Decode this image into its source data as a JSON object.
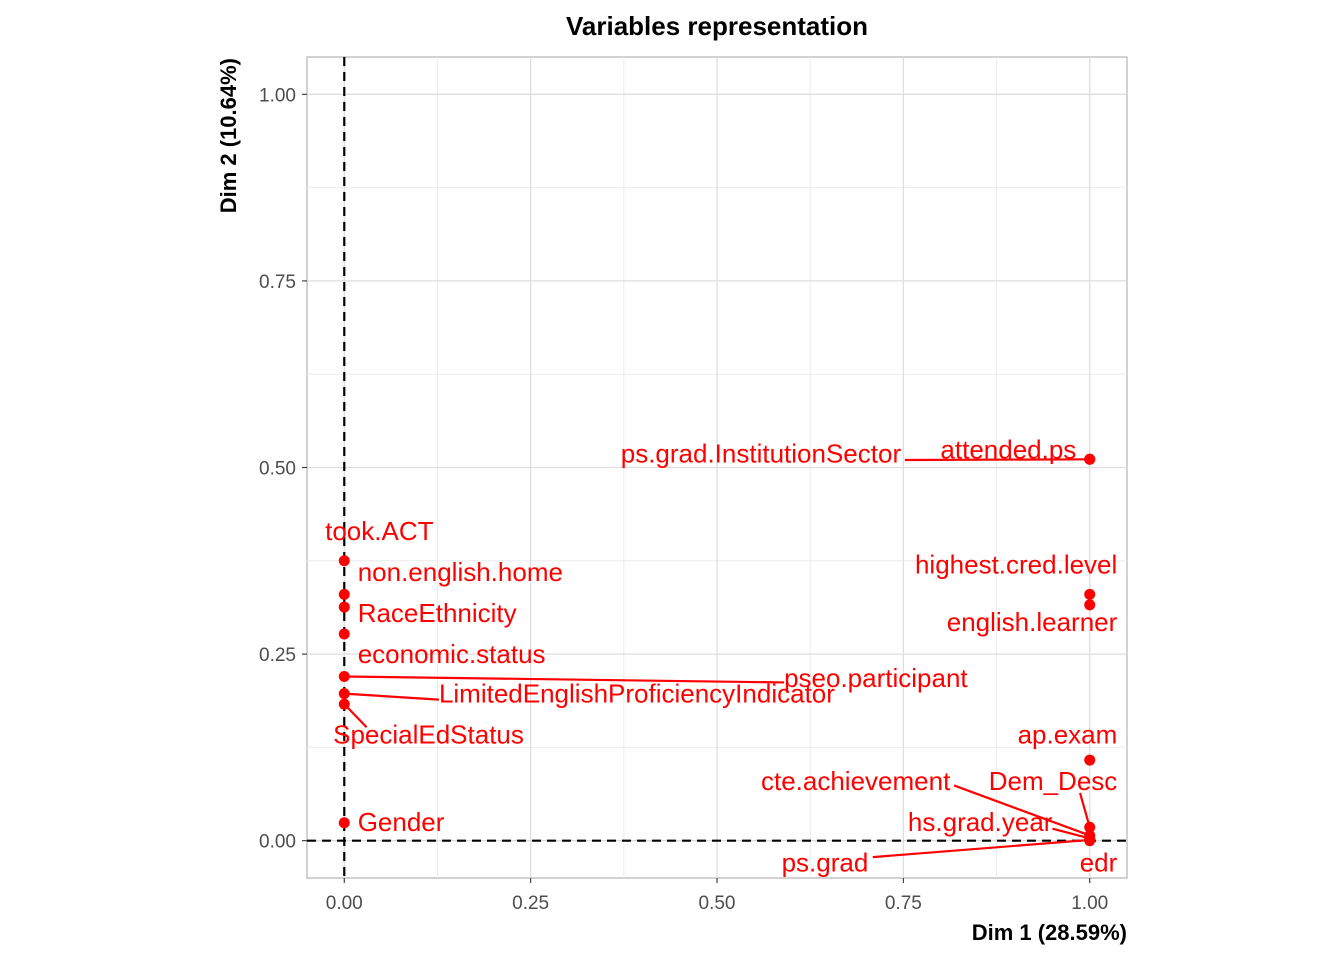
{
  "chart_data": {
    "type": "scatter",
    "title": "Variables representation",
    "xlabel": "Dim 1 (28.59%)",
    "ylabel": "Dim 2 (10.64%)",
    "xlim": [
      -0.05,
      1.05
    ],
    "ylim": [
      -0.05,
      1.05
    ],
    "x_ticks": [
      0.0,
      0.25,
      0.5,
      0.75,
      1.0
    ],
    "x_tick_labels": [
      "0.00",
      "0.25",
      "0.50",
      "0.75",
      "1.00"
    ],
    "y_ticks": [
      0.0,
      0.25,
      0.5,
      0.75,
      1.0
    ],
    "y_tick_labels": [
      "0.00",
      "0.25",
      "0.50",
      "0.75",
      "1.00"
    ],
    "grid": true,
    "reference_lines": {
      "x": 0,
      "y": 0,
      "style": "dashed"
    },
    "point_color": "#ff0000",
    "points": [
      {
        "label": "took.ACT",
        "x": 0.0,
        "y": 0.375,
        "lx": 0.047,
        "ly": 0.403,
        "anchor": "middle"
      },
      {
        "label": "non.english.home",
        "x": 0.0,
        "y": 0.33,
        "lx": 0.018,
        "ly": 0.348,
        "anchor": "start"
      },
      {
        "label": "RaceEthnicity",
        "x": 0.0,
        "y": 0.313,
        "lx": 0.018,
        "ly": 0.293,
        "anchor": "start"
      },
      {
        "label": "economic.status",
        "x": 0.0,
        "y": 0.277,
        "lx": 0.018,
        "ly": 0.238,
        "anchor": "start"
      },
      {
        "label": "pseo.participant",
        "x": 0.0,
        "y": 0.22,
        "lx": 0.59,
        "ly": 0.206,
        "anchor": "start",
        "line_to": [
          0.59,
          0.212
        ]
      },
      {
        "label": "LimitedEnglishProficiencyIndicator",
        "x": 0.0,
        "y": 0.197,
        "lx": 0.127,
        "ly": 0.185,
        "anchor": "start",
        "line_to": [
          0.127,
          0.189
        ]
      },
      {
        "label": "SpecialEdStatus",
        "x": 0.0,
        "y": 0.183,
        "lx": 0.113,
        "ly": 0.13,
        "anchor": "middle",
        "line_to": [
          0.03,
          0.152
        ]
      },
      {
        "label": "Gender",
        "x": 0.0,
        "y": 0.024,
        "lx": 0.018,
        "ly": 0.013,
        "anchor": "start"
      },
      {
        "label": "attended.ps",
        "x": 1.0,
        "y": 0.511,
        "lx": 0.982,
        "ly": 0.512,
        "anchor": "end"
      },
      {
        "label": "ps.grad.InstitutionSector",
        "x": 1.0,
        "y": 0.511,
        "lx": 0.747,
        "ly": 0.507,
        "anchor": "end",
        "line_to": [
          0.752,
          0.51
        ]
      },
      {
        "label": "highest.cred.level",
        "x": 1.0,
        "y": 0.33,
        "lx": 1.037,
        "ly": 0.358,
        "anchor": "end"
      },
      {
        "label": "english.learner",
        "x": 1.0,
        "y": 0.316,
        "lx": 1.037,
        "ly": 0.281,
        "anchor": "end"
      },
      {
        "label": "ap.exam",
        "x": 1.0,
        "y": 0.108,
        "lx": 1.037,
        "ly": 0.13,
        "anchor": "end"
      },
      {
        "label": "Dem_Desc",
        "x": 1.0,
        "y": 0.018,
        "lx": 1.037,
        "ly": 0.068,
        "anchor": "end",
        "line_to": [
          0.987,
          0.064
        ]
      },
      {
        "label": "cte.achievement",
        "x": 1.0,
        "y": 0.007,
        "lx": 0.813,
        "ly": 0.068,
        "anchor": "end",
        "line_to": [
          0.818,
          0.074
        ]
      },
      {
        "label": "hs.grad.year",
        "x": 1.0,
        "y": 0.003,
        "lx": 0.95,
        "ly": 0.013,
        "anchor": "end",
        "line_to": [
          0.95,
          0.016
        ]
      },
      {
        "label": "ps.grad",
        "x": 1.0,
        "y": 0.001,
        "lx": 0.703,
        "ly": -0.041,
        "anchor": "end",
        "line_to": [
          0.709,
          -0.022
        ]
      },
      {
        "label": "edr",
        "x": 1.0,
        "y": 0.0,
        "lx": 1.037,
        "ly": -0.041,
        "anchor": "end"
      }
    ]
  }
}
